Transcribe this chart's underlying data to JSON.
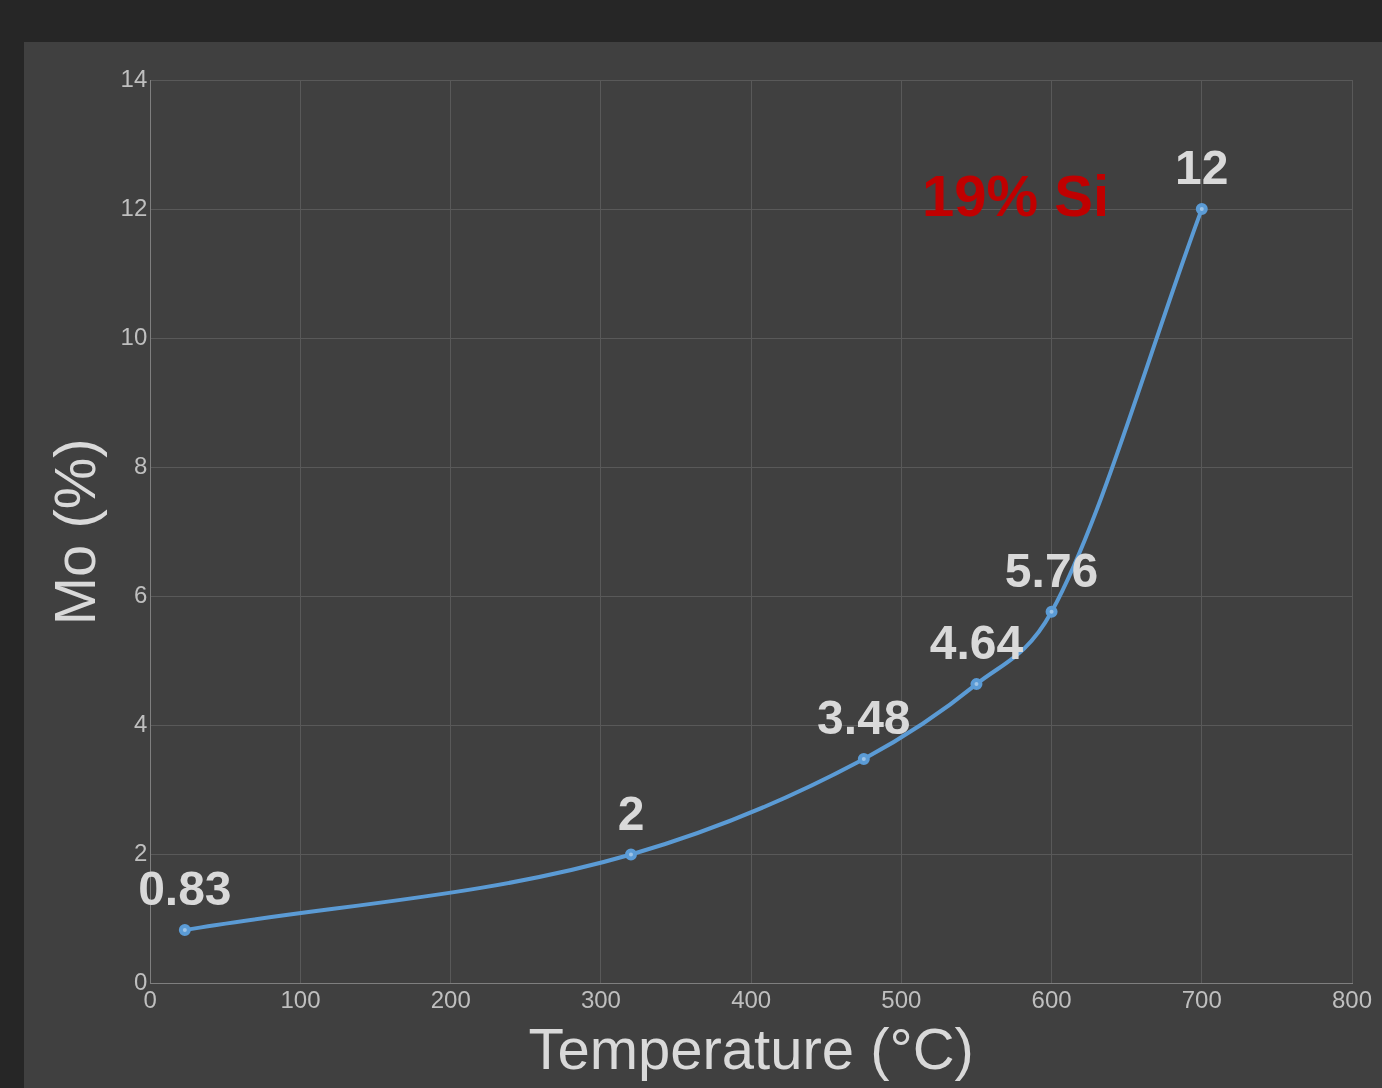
{
  "chart_data": {
    "type": "line",
    "xlabel": "Temperature (°C)",
    "ylabel": "Mo (%)",
    "annotations": [
      "19% Si"
    ],
    "x": [
      23,
      320,
      475,
      550,
      600,
      700
    ],
    "series": [
      {
        "color": "#5b9bd5",
        "values": [
          0.83,
          2,
          3.48,
          4.64,
          5.76,
          12
        ]
      }
    ],
    "xlim": [
      0,
      800
    ],
    "xticks": [
      0,
      100,
      200,
      300,
      400,
      500,
      600,
      700,
      800
    ],
    "ylim": [
      0,
      14
    ],
    "yticks": [
      0,
      2,
      4,
      6,
      8,
      10,
      12,
      14
    ],
    "grid": true,
    "legend": false,
    "marker": "circle",
    "line_style": "solid",
    "data_labels": true
  }
}
